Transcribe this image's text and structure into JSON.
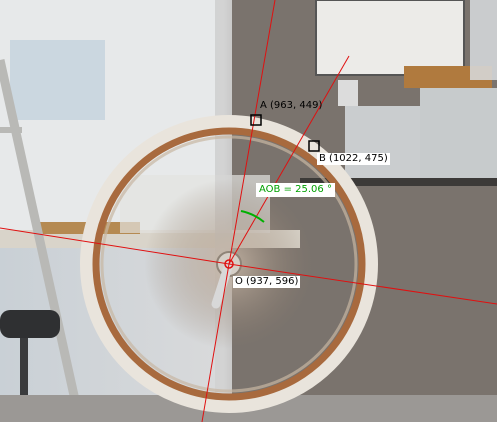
{
  "annotations": {
    "point_a": "A (963, 449)",
    "point_b": "B (1022, 475)",
    "point_o": "O (937, 596)",
    "angle": "AOB = 25.06 °"
  },
  "colors": {
    "guide_line": "#e01010",
    "angle_arc": "#00b000",
    "wheel_rim": "#e9e4dc",
    "wheel_brake_track": "#a86a3e"
  }
}
